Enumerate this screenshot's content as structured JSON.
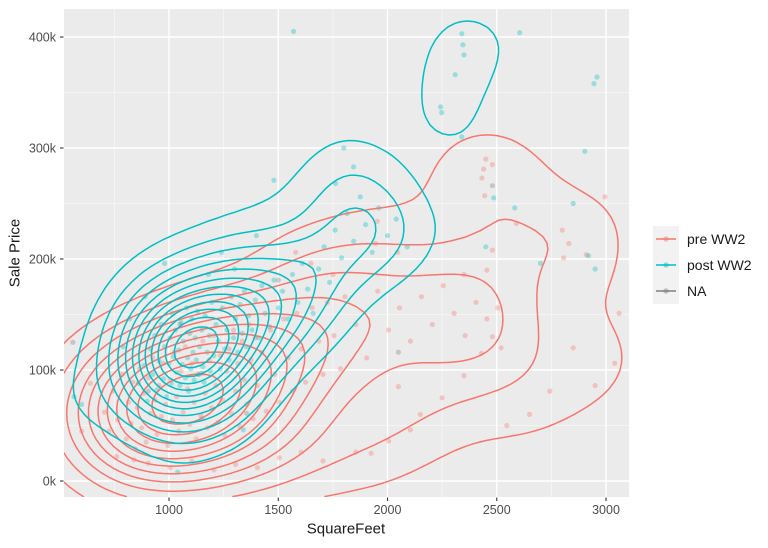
{
  "chart_data": {
    "type": "scatter",
    "overlay": "2d-density-contours",
    "title": "",
    "xlabel": "SquareFeet",
    "ylabel": "Sale Price",
    "x_ticks": [
      1000,
      1500,
      2000,
      2500,
      3000
    ],
    "x_minor_ticks": [
      750,
      1250,
      1750,
      2250,
      2750
    ],
    "y_tick_values": [
      0,
      100,
      200,
      300,
      400
    ],
    "y_tick_labels": [
      "0k",
      "100k",
      "200k",
      "300k",
      "400k"
    ],
    "y_minor_values": [
      50,
      150,
      250,
      350
    ],
    "x_range": [
      519,
      3105
    ],
    "y_range_thousands": [
      -14,
      425
    ],
    "grid": true,
    "legend_position": "right",
    "panel_bg": "#EBEBEB",
    "grid_major_color": "#FFFFFF",
    "grid_minor_color": "#FFFFFF",
    "tick_mark_color": "#333333",
    "tick_label_color": "#4D4D4D",
    "axis_title_color": "#1A1A1A",
    "legend_key_bg": "#F2F2F2",
    "point_opacity": 0.35,
    "point_radius": 2.6,
    "contour_width": 1.5,
    "series": [
      {
        "name": "pre WW2",
        "color": "#F8766D",
        "contours": true,
        "contour_levels": 11,
        "kde_bandwidth": [
          215,
          34
        ],
        "points": [
          [
            705,
            62
          ],
          [
            725,
            45
          ],
          [
            745,
            81
          ],
          [
            765,
            55
          ],
          [
            785,
            96
          ],
          [
            805,
            38
          ],
          [
            815,
            71
          ],
          [
            825,
            52
          ],
          [
            835,
            89
          ],
          [
            845,
            29
          ],
          [
            855,
            66
          ],
          [
            865,
            101
          ],
          [
            875,
            48
          ],
          [
            885,
            79
          ],
          [
            895,
            35
          ],
          [
            905,
            93
          ],
          [
            915,
            61
          ],
          [
            925,
            111
          ],
          [
            935,
            73
          ],
          [
            945,
            42
          ],
          [
            955,
            86
          ],
          [
            965,
            58
          ],
          [
            975,
            106
          ],
          [
            985,
            69
          ],
          [
            995,
            32
          ],
          [
            1005,
            91
          ],
          [
            1015,
            55
          ],
          [
            1025,
            116
          ],
          [
            1035,
            76
          ],
          [
            1045,
            45
          ],
          [
            1055,
            99
          ],
          [
            1065,
            62
          ],
          [
            1075,
            121
          ],
          [
            1085,
            83
          ],
          [
            1095,
            51
          ],
          [
            1105,
            106
          ],
          [
            1115,
            71
          ],
          [
            1125,
            38
          ],
          [
            1135,
            96
          ],
          [
            1145,
            59
          ],
          [
            1155,
            126
          ],
          [
            1165,
            79
          ],
          [
            1175,
            48
          ],
          [
            1185,
            109
          ],
          [
            1195,
            66
          ],
          [
            1205,
            131
          ],
          [
            1215,
            86
          ],
          [
            1225,
            53
          ],
          [
            1235,
            113
          ],
          [
            1245,
            73
          ],
          [
            1255,
            41
          ],
          [
            1265,
            99
          ],
          [
            1275,
            119
          ],
          [
            1285,
            61
          ],
          [
            1295,
            136
          ],
          [
            1305,
            81
          ],
          [
            1315,
            106
          ],
          [
            1325,
            49
          ],
          [
            1335,
            126
          ],
          [
            1345,
            91
          ],
          [
            1355,
            69
          ],
          [
            1365,
            141
          ],
          [
            1375,
            109
          ],
          [
            1385,
            56
          ],
          [
            1395,
            129
          ],
          [
            1405,
            86
          ],
          [
            1425,
            116
          ],
          [
            1445,
            63
          ],
          [
            1465,
            136
          ],
          [
            1485,
            96
          ],
          [
            1505,
            71
          ],
          [
            1525,
            146
          ],
          [
            1545,
            111
          ],
          [
            1565,
            81
          ],
          [
            1585,
            151
          ],
          [
            1605,
            119
          ],
          [
            1625,
            89
          ],
          [
            1655,
            156
          ],
          [
            1685,
            126
          ],
          [
            1705,
            96
          ],
          [
            1725,
            161
          ],
          [
            1755,
            131
          ],
          [
            1785,
            101
          ],
          [
            1805,
            166
          ],
          [
            1855,
            141
          ],
          [
            1905,
            111
          ],
          [
            1955,
            171
          ],
          [
            2005,
            136
          ],
          [
            2055,
            156
          ],
          [
            2105,
            126
          ],
          [
            2155,
            166
          ],
          [
            2205,
            141
          ],
          [
            2255,
            176
          ],
          [
            2305,
            151
          ],
          [
            2355,
            131
          ],
          [
            2405,
            161
          ],
          [
            2455,
            146
          ],
          [
            2505,
            156
          ],
          [
            2455,
            190
          ],
          [
            2480,
            208
          ],
          [
            2590,
            232
          ],
          [
            2480,
            130
          ],
          [
            2430,
            115
          ],
          [
            2520,
            120
          ],
          [
            905,
            16
          ],
          [
            1005,
            12
          ],
          [
            1105,
            18
          ],
          [
            1205,
            10
          ],
          [
            1305,
            15
          ],
          [
            1405,
            12
          ],
          [
            1505,
            21
          ],
          [
            1605,
            26
          ],
          [
            1705,
            18
          ],
          [
            1855,
            26
          ],
          [
            1925,
            25
          ],
          [
            2005,
            36
          ],
          [
            2105,
            46
          ],
          [
            760,
            22
          ],
          [
            840,
            19
          ],
          [
            2546,
            50
          ],
          [
            2743,
            81
          ],
          [
            2950,
            86
          ],
          [
            2850,
            120
          ],
          [
            3040,
            106
          ],
          [
            2450,
            290
          ],
          [
            2480,
            285
          ],
          [
            2440,
            281
          ],
          [
            2432,
            273
          ],
          [
            2445,
            257
          ],
          [
            2995,
            256
          ],
          [
            1954,
            234
          ],
          [
            1945,
            214
          ],
          [
            2046,
            206
          ],
          [
            2350,
            186
          ],
          [
            1650,
            196
          ],
          [
            1750,
            186
          ],
          [
            3060,
            151
          ],
          [
            2650,
            60
          ],
          [
            2250,
            75
          ],
          [
            2350,
            95
          ],
          [
            2150,
            60
          ],
          [
            2050,
            85
          ],
          [
            640,
            88
          ],
          [
            600,
            45
          ],
          [
            1580,
            206
          ],
          [
            2800,
            226
          ],
          [
            2830,
            214
          ],
          [
            2910,
            204
          ],
          [
            2806,
            201
          ]
        ]
      },
      {
        "name": "post WW2",
        "color": "#00BFC4",
        "contours": true,
        "contour_levels": 12,
        "kde_bandwidth": [
          165,
          33
        ],
        "points": [
          [
            860,
            88
          ],
          [
            885,
            104
          ],
          [
            900,
            72
          ],
          [
            915,
            119
          ],
          [
            925,
            96
          ],
          [
            935,
            131
          ],
          [
            945,
            82
          ],
          [
            955,
            108
          ],
          [
            965,
            141
          ],
          [
            975,
            92
          ],
          [
            980,
            121
          ],
          [
            990,
            76
          ],
          [
            1000,
            106
          ],
          [
            1005,
            129
          ],
          [
            1010,
            88
          ],
          [
            1015,
            151
          ],
          [
            1020,
            112
          ],
          [
            1030,
            136
          ],
          [
            1035,
            98
          ],
          [
            1045,
            118
          ],
          [
            1050,
            86
          ],
          [
            1055,
            143
          ],
          [
            1060,
            105
          ],
          [
            1065,
            126
          ],
          [
            1075,
            93
          ],
          [
            1080,
            156
          ],
          [
            1085,
            111
          ],
          [
            1090,
            81
          ],
          [
            1095,
            133
          ],
          [
            1100,
            101
          ],
          [
            1105,
            146
          ],
          [
            1110,
            116
          ],
          [
            1115,
            91
          ],
          [
            1120,
            129
          ],
          [
            1125,
            109
          ],
          [
            1130,
            153
          ],
          [
            1135,
            96
          ],
          [
            1140,
            121
          ],
          [
            1150,
            136
          ],
          [
            1155,
            103
          ],
          [
            1160,
            89
          ],
          [
            1165,
            149
          ],
          [
            1175,
            116
          ],
          [
            1185,
            131
          ],
          [
            1190,
            99
          ],
          [
            1195,
            161
          ],
          [
            1205,
            113
          ],
          [
            1215,
            141
          ],
          [
            1225,
            126
          ],
          [
            1235,
            101
          ],
          [
            1245,
            156
          ],
          [
            1255,
            119
          ],
          [
            1265,
            136
          ],
          [
            1275,
            109
          ],
          [
            1285,
            166
          ],
          [
            1295,
            129
          ],
          [
            1305,
            146
          ],
          [
            1315,
            116
          ],
          [
            1325,
            159
          ],
          [
            1335,
            133
          ],
          [
            1345,
            171
          ],
          [
            1355,
            121
          ],
          [
            1365,
            149
          ],
          [
            1380,
            136
          ],
          [
            1395,
            163
          ],
          [
            1410,
            129
          ],
          [
            1425,
            176
          ],
          [
            1440,
            151
          ],
          [
            1460,
            139
          ],
          [
            1480,
            181
          ],
          [
            1500,
            156
          ],
          [
            1520,
            171
          ],
          [
            1545,
            146
          ],
          [
            1565,
            186
          ],
          [
            1590,
            161
          ],
          [
            1610,
            196
          ],
          [
            1635,
            173
          ],
          [
            1660,
            151
          ],
          [
            1685,
            191
          ],
          [
            1710,
            211
          ],
          [
            1735,
            179
          ],
          [
            1760,
            226
          ],
          [
            1790,
            201
          ],
          [
            1815,
            241
          ],
          [
            1845,
            216
          ],
          [
            1875,
            256
          ],
          [
            1900,
            231
          ],
          [
            1930,
            206
          ],
          [
            1960,
            246
          ],
          [
            2000,
            221
          ],
          [
            2040,
            236
          ],
          [
            2090,
            211
          ],
          [
            1480,
            271
          ],
          [
            1400,
            221
          ],
          [
            1300,
            191
          ],
          [
            1240,
            206
          ],
          [
            1180,
            186
          ],
          [
            1570,
            405
          ],
          [
            2340,
            403
          ],
          [
            2605,
            404
          ],
          [
            2345,
            393
          ],
          [
            2350,
            384
          ],
          [
            2310,
            366
          ],
          [
            2959,
            364
          ],
          [
            2945,
            358
          ],
          [
            2243,
            337
          ],
          [
            2248,
            332
          ],
          [
            2340,
            310
          ],
          [
            2903,
            297
          ],
          [
            1800,
            300
          ],
          [
            1845,
            283
          ],
          [
            1762,
            268
          ],
          [
            2486,
            255
          ],
          [
            2582,
            246
          ],
          [
            2450,
            211
          ],
          [
            2700,
            196
          ],
          [
            2950,
            191
          ],
          [
            2850,
            250
          ],
          [
            2920,
            203
          ],
          [
            1040,
            8
          ],
          [
            1340,
            46
          ],
          [
            1150,
            56
          ],
          [
            980,
            196
          ],
          [
            890,
            166
          ],
          [
            790,
            121
          ],
          [
            820,
            146
          ],
          [
            565,
            76
          ],
          [
            600,
            69
          ]
        ]
      },
      {
        "name": "NA",
        "color": "#7F7F7F",
        "contours": false,
        "contour_levels": 0,
        "kde_bandwidth": [
          200,
          34
        ],
        "points": [
          [
            560,
            125
          ],
          [
            1150,
            97
          ],
          [
            1500,
            181
          ],
          [
            2480,
            266
          ],
          [
            1050,
            141
          ],
          [
            1355,
            61
          ],
          [
            905,
            81
          ],
          [
            2050,
            116
          ]
        ]
      }
    ]
  }
}
